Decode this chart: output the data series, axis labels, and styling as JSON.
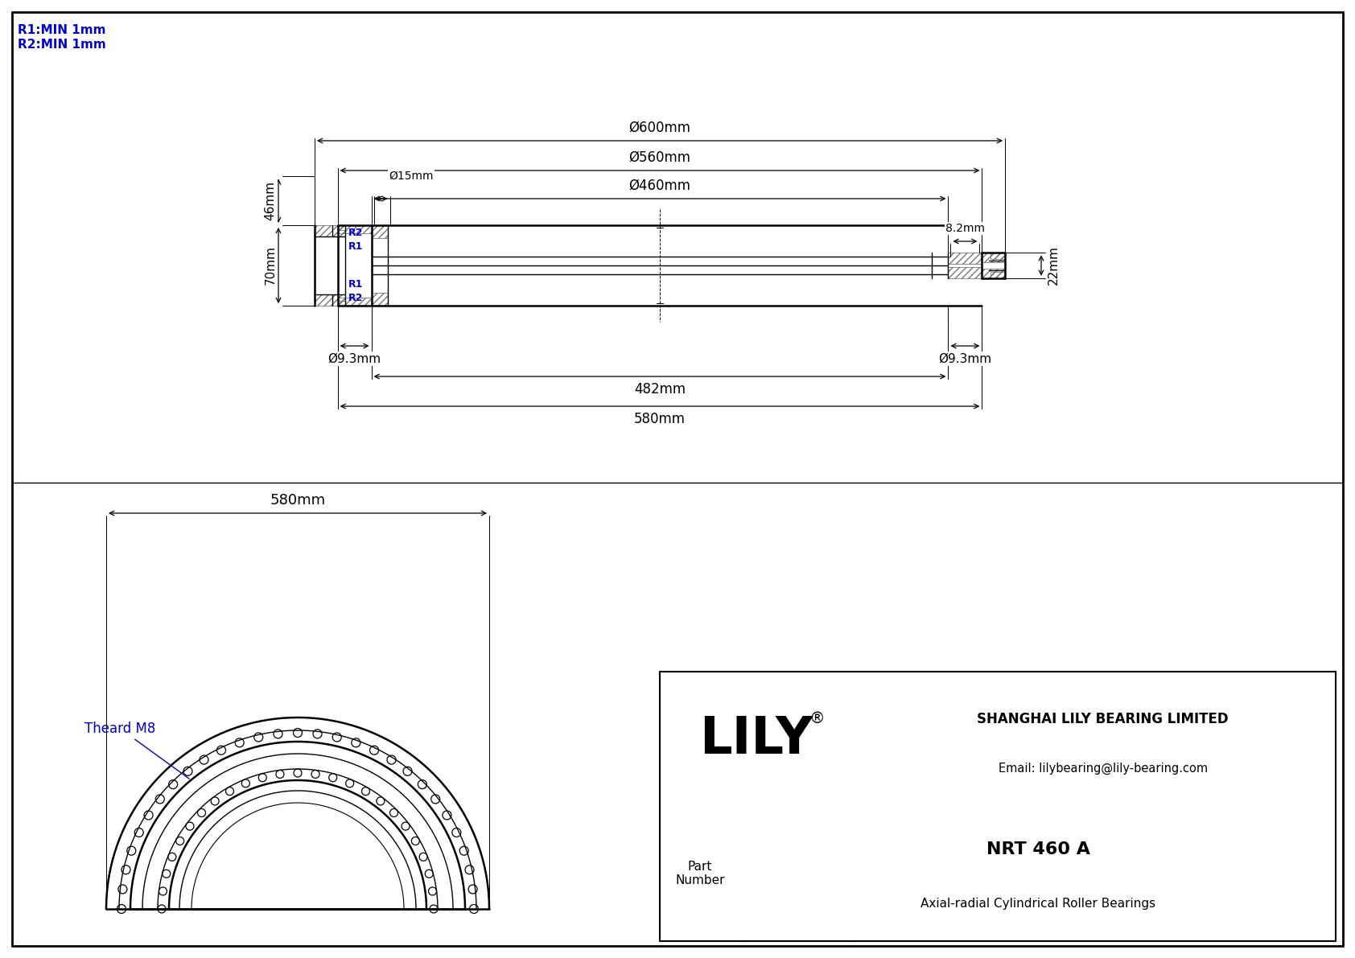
{
  "bg_color": "#ffffff",
  "line_color": "#000000",
  "blue_color": "#0000cd",
  "note1": "R1:MIN 1mm",
  "note2": "R2:MIN 1mm",
  "dim_600": "Ø600mm",
  "dim_560": "Ø560mm",
  "dim_460": "Ø460mm",
  "dim_15": "Ø15mm",
  "dim_46": "46mm",
  "dim_70": "70mm",
  "dim_22": "22mm",
  "dim_82": "8.2mm",
  "dim_93a": "Ø9.3mm",
  "dim_93b": "Ø9.3mm",
  "dim_482": "482mm",
  "dim_580": "580mm",
  "thread_label": "Theard M8",
  "label_R1": "R1",
  "label_R2": "R2",
  "title_company": "SHANGHAI LILY BEARING LIMITED",
  "title_email": "Email: lilybearing@lily-bearing.com",
  "part_label": "Part\nNumber",
  "part_number": "NRT 460 A",
  "part_desc": "Axial-radial Cylindrical Roller Bearings",
  "logo_text": "LILY"
}
